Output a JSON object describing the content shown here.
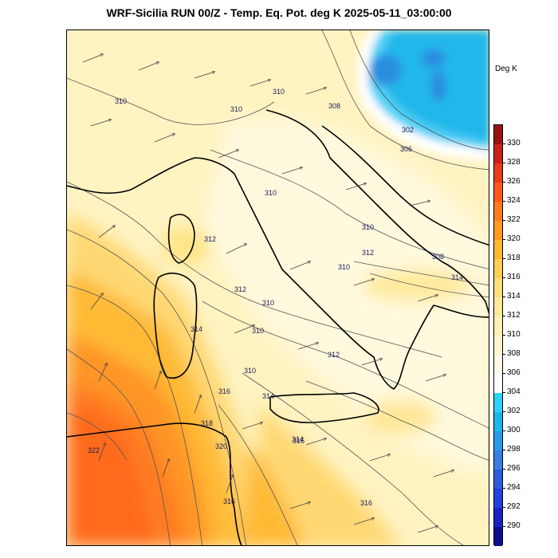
{
  "title": "WRF-Sicilia RUN 00/Z - Temp. Eq. Pot. deg K 2025-05-11_03:00:00",
  "colorbar": {
    "units": "Deg K",
    "levels": [
      290,
      292,
      294,
      296,
      298,
      300,
      302,
      304,
      306,
      308,
      310,
      312,
      314,
      316,
      318,
      320,
      322,
      324,
      326,
      328,
      330
    ],
    "colors": [
      "#0c0e8c",
      "#1a23c0",
      "#2440d8",
      "#2c5cd8",
      "#3a7ee0",
      "#2a9be6",
      "#1bb7ea",
      "#2ed1f7",
      "#ffffff",
      "#fffbe6",
      "#fff6cf",
      "#fff0b5",
      "#ffe99a",
      "#ffde7f",
      "#ffcf56",
      "#ffb732",
      "#ff9a25",
      "#ff7b20",
      "#ff5a1c",
      "#e83c1a",
      "#c6221a",
      "#9a1212"
    ]
  },
  "contour_labels": [
    "310",
    "310",
    "310",
    "308",
    "302",
    "306",
    "310",
    "310",
    "312",
    "312",
    "310",
    "308",
    "314",
    "312",
    "310",
    "310",
    "314",
    "310",
    "312",
    "316",
    "314",
    "318",
    "316",
    "320",
    "322",
    "314",
    "316",
    "316"
  ]
}
